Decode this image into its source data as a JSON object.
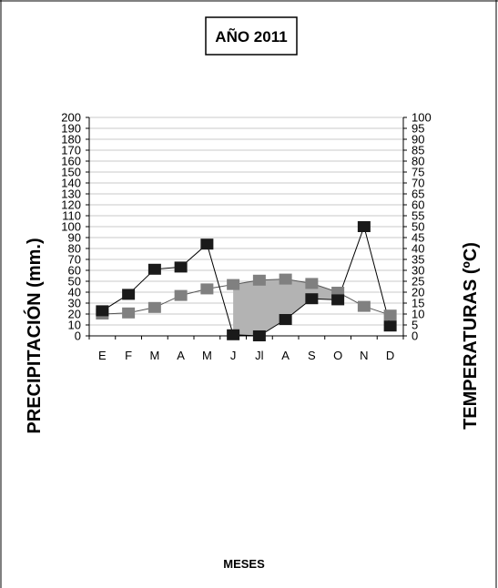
{
  "chart_data": {
    "type": "line",
    "title": "AÑO 2011",
    "xlabel": "MESES",
    "ylabel": "PRECIPITACIÓN (mm.)",
    "y2label": "TEMPERATURAS (ºC)",
    "categories": [
      "E",
      "F",
      "M",
      "A",
      "M",
      "J",
      "Jl",
      "A",
      "S",
      "O",
      "N",
      "D"
    ],
    "ylim": [
      0,
      200
    ],
    "y2lim": [
      0,
      100
    ],
    "yticks": [
      0,
      10,
      20,
      30,
      40,
      50,
      60,
      70,
      80,
      90,
      100,
      110,
      120,
      130,
      140,
      150,
      160,
      170,
      180,
      190,
      200
    ],
    "y2ticks": [
      0,
      5,
      10,
      15,
      20,
      25,
      30,
      35,
      40,
      45,
      50,
      55,
      60,
      65,
      70,
      75,
      80,
      85,
      90,
      95,
      100
    ],
    "grid": true,
    "series": [
      {
        "axis": "left",
        "values": [
          23,
          38,
          61,
          63,
          84,
          1,
          0,
          15,
          34,
          33,
          100,
          9
        ],
        "color": "#1a1a1a"
      },
      {
        "axis": "right",
        "values": [
          10,
          10.5,
          13,
          18.5,
          21.5,
          23.5,
          25.5,
          26,
          24,
          20,
          13.5,
          9.5
        ],
        "color": "#808080"
      }
    ],
    "shaded_region": {
      "from_index": 5,
      "to_index": 9,
      "color": "#b3b3b3",
      "between": "precipitation-and-temperature"
    }
  }
}
